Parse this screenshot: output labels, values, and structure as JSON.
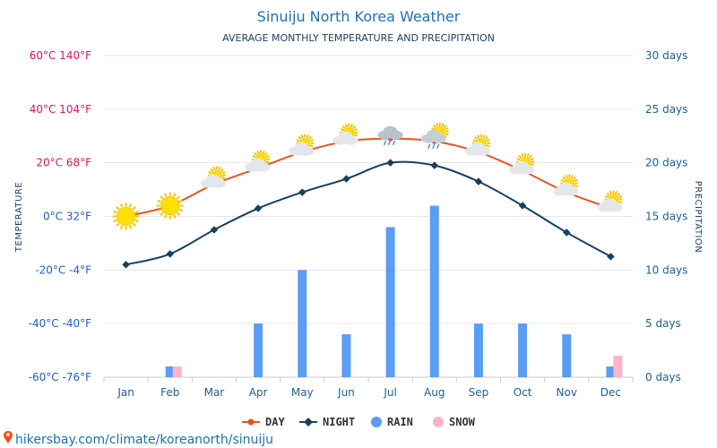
{
  "colors": {
    "day": "#e8541e",
    "night": "#173f5f",
    "rain": "#5b9cf5",
    "snow": "#ffb3c6",
    "title": "#1f6fb2",
    "grid": "#e6e6e6",
    "warm_tick": "#e0115f",
    "cool_tick": "#1f5fbf"
  },
  "icons": [
    "sun-icon",
    "sun-icon",
    "partly-cloudy-icon",
    "partly-cloudy-icon",
    "partly-cloudy-icon",
    "partly-cloudy-icon",
    "rain-cloud-icon",
    "rain-cloud-sun-icon",
    "partly-cloudy-icon",
    "partly-cloudy-icon",
    "partly-cloudy-icon",
    "partly-cloudy-icon"
  ],
  "legend": {
    "day": "DAY",
    "night": "NIGHT",
    "rain": "RAIN",
    "snow": "SNOW"
  },
  "footer": "hikersbay.com/climate/koreanorth/sinuiju",
  "chart_data": {
    "type": "line",
    "title": "Sinuiju North Korea Weather",
    "subtitle": "AVERAGE MONTHLY TEMPERATURE AND PRECIPITATION",
    "categories": [
      "Jan",
      "Feb",
      "Mar",
      "Apr",
      "May",
      "Jun",
      "Jul",
      "Aug",
      "Sep",
      "Oct",
      "Nov",
      "Dec"
    ],
    "left_axis": {
      "label": "TEMPERATURE",
      "range_c": [
        -60,
        60
      ],
      "ticks": [
        "60°C 140°F",
        "40°C 104°F",
        "20°C 68°F",
        "0°C 32°F",
        "-20°C -4°F",
        "-40°C -40°F",
        "-60°C -76°F"
      ]
    },
    "right_axis": {
      "label": "PRECIPITATION",
      "range_days": [
        0,
        30
      ],
      "ticks": [
        "30 days",
        "25 days",
        "20 days",
        "15 days",
        "10 days",
        "5 days",
        "0 days"
      ]
    },
    "series": [
      {
        "name": "DAY",
        "kind": "line",
        "axis": "left",
        "values": [
          0,
          4,
          12,
          18,
          24,
          28,
          29,
          28,
          24,
          17,
          9,
          3
        ]
      },
      {
        "name": "NIGHT",
        "kind": "line",
        "axis": "left",
        "values": [
          -18,
          -14,
          -5,
          3,
          9,
          14,
          20,
          19,
          13,
          4,
          -6,
          -15
        ]
      },
      {
        "name": "RAIN",
        "kind": "bar",
        "axis": "right",
        "values": [
          0,
          1,
          0,
          5,
          10,
          4,
          14,
          16,
          5,
          5,
          4,
          1
        ]
      },
      {
        "name": "SNOW",
        "kind": "bar",
        "axis": "right",
        "values": [
          0,
          1,
          0,
          0,
          0,
          0,
          0,
          0,
          0,
          0,
          0,
          2
        ]
      }
    ],
    "grid": true,
    "legend_position": "bottom-center"
  }
}
